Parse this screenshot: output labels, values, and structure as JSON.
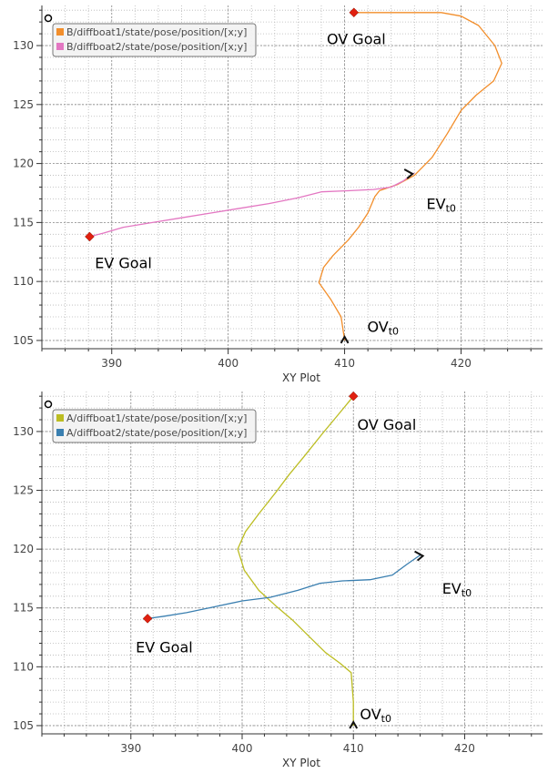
{
  "chart_data": [
    {
      "type": "line",
      "xlabel": "XY Plot",
      "xlim": [
        384,
        427
      ],
      "ylim": [
        104.3,
        133.4
      ],
      "xticks": [
        390,
        400,
        410,
        420
      ],
      "yticks": [
        105,
        110,
        115,
        120,
        125,
        130
      ],
      "grid": true,
      "legend_placement": "top-left",
      "series": [
        {
          "name": "B/diffboat1/state/pose/position/[x;y]",
          "color": "#f28e2b",
          "points": [
            [
              410,
              105
            ],
            [
              409.7,
              107
            ],
            [
              408.8,
              108.5
            ],
            [
              407.8,
              109.9
            ],
            [
              408.2,
              111.2
            ],
            [
              409,
              112.2
            ],
            [
              410.3,
              113.5
            ],
            [
              411.2,
              114.6
            ],
            [
              412,
              115.8
            ],
            [
              412.6,
              117.2
            ],
            [
              413,
              117.7
            ],
            [
              414.5,
              118.2
            ],
            [
              416,
              119
            ],
            [
              417.5,
              120.5
            ],
            [
              418.8,
              122.5
            ],
            [
              420,
              124.5
            ],
            [
              421.3,
              125.8
            ],
            [
              422.8,
              127
            ],
            [
              423.5,
              128.5
            ],
            [
              422.9,
              130
            ],
            [
              421.5,
              131.7
            ],
            [
              420,
              132.5
            ],
            [
              418.3,
              132.8
            ],
            [
              416,
              132.8
            ],
            [
              413,
              132.8
            ],
            [
              410.8,
              132.8
            ]
          ]
        },
        {
          "name": "B/diffboat2/state/pose/position/[x;y]",
          "color": "#e377c2",
          "points": [
            [
              416,
              119.2
            ],
            [
              415,
              118.5
            ],
            [
              414,
              118
            ],
            [
              412.5,
              117.8
            ],
            [
              410.5,
              117.7
            ],
            [
              408,
              117.6
            ],
            [
              406,
              117.1
            ],
            [
              403.5,
              116.6
            ],
            [
              401,
              116.2
            ],
            [
              398.5,
              115.8
            ],
            [
              396,
              115.4
            ],
            [
              393.5,
              115
            ],
            [
              391,
              114.6
            ],
            [
              389.3,
              114.1
            ],
            [
              388.1,
              113.8
            ]
          ]
        }
      ],
      "markers": [
        {
          "label": "OV Goal",
          "x": 410.8,
          "y": 132.8,
          "text_x": 411,
          "text_y": 130.6
        },
        {
          "label": "EV Goal",
          "x": 388.1,
          "y": 113.8,
          "text_x": 391,
          "text_y": 111.6
        }
      ],
      "start_labels": [
        {
          "label": "EV",
          "subscript": "t0",
          "x": 415.6,
          "y": 119.2,
          "text_x": 418.3,
          "text_y": 116.6
        },
        {
          "label": "OV",
          "subscript": "t0",
          "x": 410,
          "y": 105,
          "text_x": 413.3,
          "text_y": 106.2
        }
      ]
    },
    {
      "type": "line",
      "xlabel": "XY Plot",
      "xlim": [
        382,
        427
      ],
      "ylim": [
        104.3,
        133.4
      ],
      "xticks": [
        390,
        400,
        410,
        420
      ],
      "yticks": [
        105,
        110,
        115,
        120,
        125,
        130
      ],
      "grid": true,
      "legend_placement": "top-left",
      "series": [
        {
          "name": "A/diffboat1/state/pose/position/[x;y]",
          "color": "#bcbd22",
          "points": [
            [
              410,
              105
            ],
            [
              410,
              107
            ],
            [
              409.8,
              109.5
            ],
            [
              408.8,
              110.3
            ],
            [
              407.5,
              111.2
            ],
            [
              406,
              112.6
            ],
            [
              404.5,
              114
            ],
            [
              403,
              115.2
            ],
            [
              401.5,
              116.5
            ],
            [
              400.2,
              118.2
            ],
            [
              399.6,
              120
            ],
            [
              400.3,
              121.5
            ],
            [
              401.5,
              123
            ],
            [
              403,
              124.8
            ],
            [
              404.2,
              126.3
            ],
            [
              405.5,
              127.8
            ],
            [
              407.2,
              129.8
            ],
            [
              408.7,
              131.5
            ],
            [
              410,
              133
            ]
          ]
        },
        {
          "name": "A/diffboat2/state/pose/position/[x;y]",
          "color": "#3a7fb0",
          "points": [
            [
              416,
              119.5
            ],
            [
              414.8,
              118.7
            ],
            [
              413.5,
              117.8
            ],
            [
              411.5,
              117.4
            ],
            [
              409,
              117.3
            ],
            [
              407,
              117.1
            ],
            [
              405,
              116.5
            ],
            [
              402.5,
              115.9
            ],
            [
              400,
              115.6
            ],
            [
              397.5,
              115.1
            ],
            [
              395,
              114.6
            ],
            [
              393,
              114.3
            ],
            [
              391.5,
              114.1
            ]
          ]
        }
      ],
      "markers": [
        {
          "label": "OV Goal",
          "x": 410,
          "y": 133,
          "text_x": 413,
          "text_y": 130.6
        },
        {
          "label": "EV Goal",
          "x": 391.5,
          "y": 114.1,
          "text_x": 393,
          "text_y": 111.7
        }
      ],
      "start_labels": [
        {
          "label": "EV",
          "subscript": "t0",
          "x": 416,
          "y": 119.5,
          "text_x": 419.3,
          "text_y": 116.7
        },
        {
          "label": "OV",
          "subscript": "t0",
          "x": 410,
          "y": 105,
          "text_x": 412,
          "text_y": 106
        }
      ]
    }
  ]
}
